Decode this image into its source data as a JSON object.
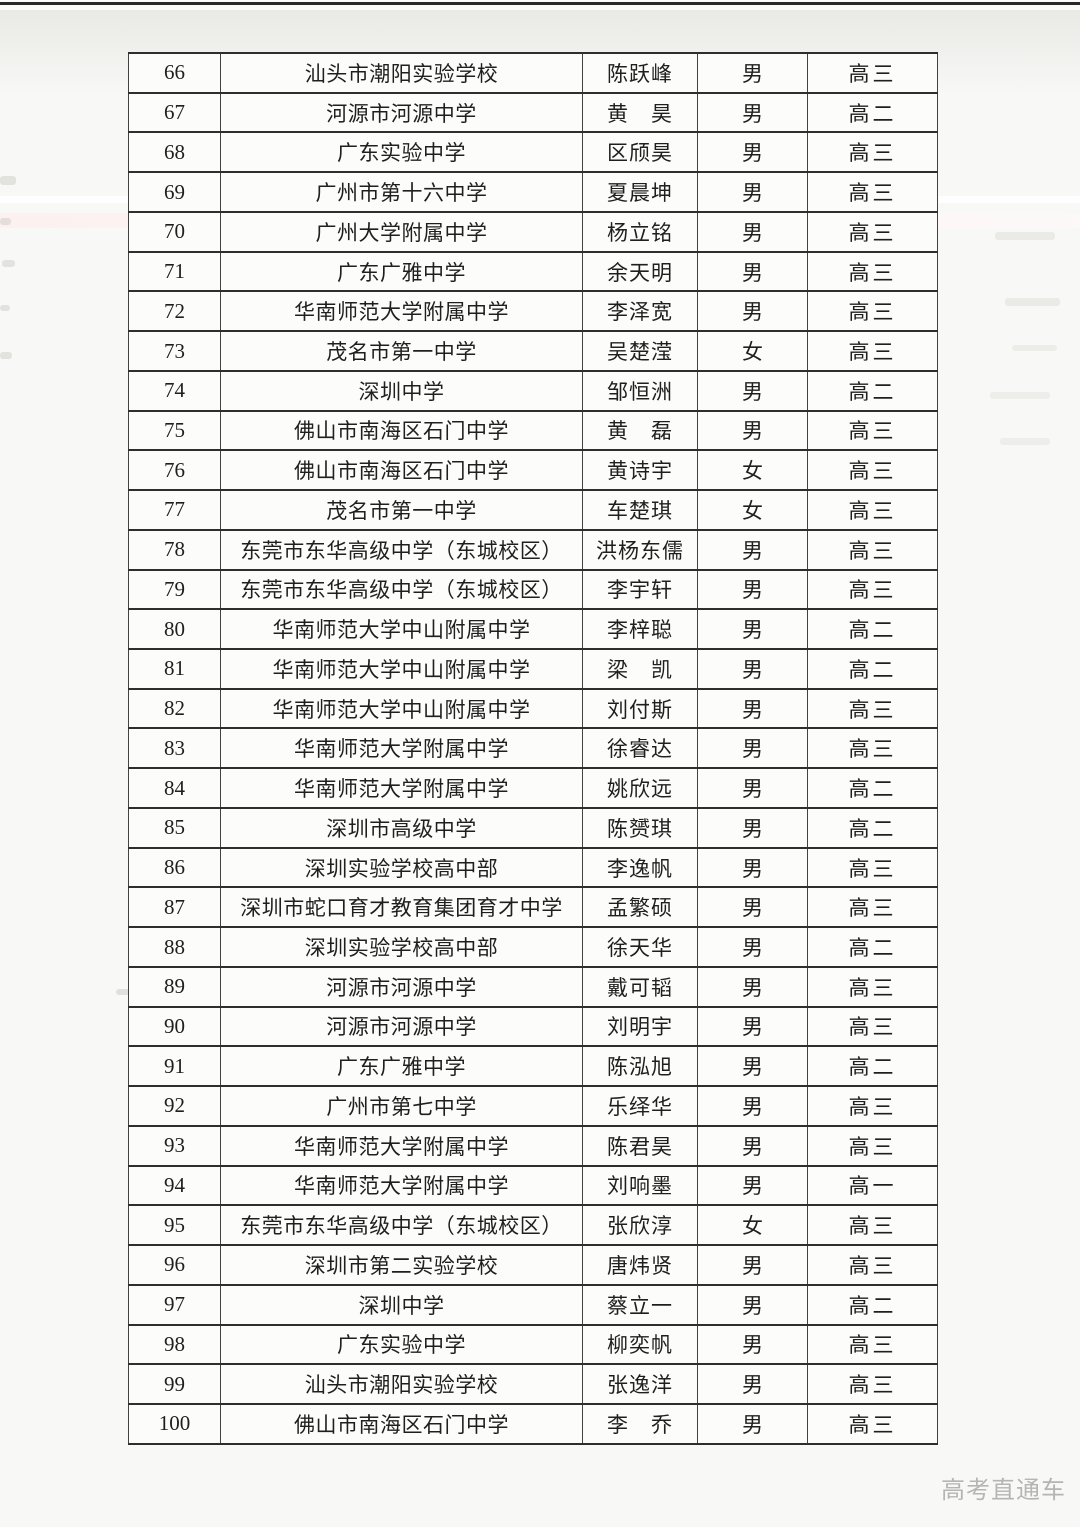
{
  "page": {
    "watermark": {
      "text": "高考直通车",
      "color": "#b5b5b2"
    }
  },
  "table": {
    "rows": [
      {
        "no": "66",
        "school": "汕头市潮阳实验学校",
        "name": "陈跃峰",
        "gender": "男",
        "grade": "高三"
      },
      {
        "no": "67",
        "school": "河源市河源中学",
        "name": "黄　昊",
        "gender": "男",
        "grade": "高二"
      },
      {
        "no": "68",
        "school": "广东实验中学",
        "name": "区颀昊",
        "gender": "男",
        "grade": "高三"
      },
      {
        "no": "69",
        "school": "广州市第十六中学",
        "name": "夏晨坤",
        "gender": "男",
        "grade": "高三"
      },
      {
        "no": "70",
        "school": "广州大学附属中学",
        "name": "杨立铭",
        "gender": "男",
        "grade": "高三"
      },
      {
        "no": "71",
        "school": "广东广雅中学",
        "name": "余天明",
        "gender": "男",
        "grade": "高三"
      },
      {
        "no": "72",
        "school": "华南师范大学附属中学",
        "name": "李泽宽",
        "gender": "男",
        "grade": "高三"
      },
      {
        "no": "73",
        "school": "茂名市第一中学",
        "name": "吴楚滢",
        "gender": "女",
        "grade": "高三"
      },
      {
        "no": "74",
        "school": "深圳中学",
        "name": "邹恒洲",
        "gender": "男",
        "grade": "高二"
      },
      {
        "no": "75",
        "school": "佛山市南海区石门中学",
        "name": "黄　磊",
        "gender": "男",
        "grade": "高三"
      },
      {
        "no": "76",
        "school": "佛山市南海区石门中学",
        "name": "黄诗宇",
        "gender": "女",
        "grade": "高三"
      },
      {
        "no": "77",
        "school": "茂名市第一中学",
        "name": "车楚琪",
        "gender": "女",
        "grade": "高三"
      },
      {
        "no": "78",
        "school": "东莞市东华高级中学（东城校区）",
        "name": "洪杨东儒",
        "gender": "男",
        "grade": "高三"
      },
      {
        "no": "79",
        "school": "东莞市东华高级中学（东城校区）",
        "name": "李宇轩",
        "gender": "男",
        "grade": "高三"
      },
      {
        "no": "80",
        "school": "华南师范大学中山附属中学",
        "name": "李梓聪",
        "gender": "男",
        "grade": "高二"
      },
      {
        "no": "81",
        "school": "华南师范大学中山附属中学",
        "name": "梁　凯",
        "gender": "男",
        "grade": "高二"
      },
      {
        "no": "82",
        "school": "华南师范大学中山附属中学",
        "name": "刘付斯",
        "gender": "男",
        "grade": "高三"
      },
      {
        "no": "83",
        "school": "华南师范大学附属中学",
        "name": "徐睿达",
        "gender": "男",
        "grade": "高三"
      },
      {
        "no": "84",
        "school": "华南师范大学附属中学",
        "name": "姚欣远",
        "gender": "男",
        "grade": "高二"
      },
      {
        "no": "85",
        "school": "深圳市高级中学",
        "name": "陈赟琪",
        "gender": "男",
        "grade": "高二"
      },
      {
        "no": "86",
        "school": "深圳实验学校高中部",
        "name": "李逸帆",
        "gender": "男",
        "grade": "高三"
      },
      {
        "no": "87",
        "school": "深圳市蛇口育才教育集团育才中学",
        "name": "孟繁硕",
        "gender": "男",
        "grade": "高三"
      },
      {
        "no": "88",
        "school": "深圳实验学校高中部",
        "name": "徐天华",
        "gender": "男",
        "grade": "高二"
      },
      {
        "no": "89",
        "school": "河源市河源中学",
        "name": "戴可韬",
        "gender": "男",
        "grade": "高三"
      },
      {
        "no": "90",
        "school": "河源市河源中学",
        "name": "刘明宇",
        "gender": "男",
        "grade": "高三"
      },
      {
        "no": "91",
        "school": "广东广雅中学",
        "name": "陈泓旭",
        "gender": "男",
        "grade": "高二"
      },
      {
        "no": "92",
        "school": "广州市第七中学",
        "name": "乐绎华",
        "gender": "男",
        "grade": "高三"
      },
      {
        "no": "93",
        "school": "华南师范大学附属中学",
        "name": "陈君昊",
        "gender": "男",
        "grade": "高三"
      },
      {
        "no": "94",
        "school": "华南师范大学附属中学",
        "name": "刘响墨",
        "gender": "男",
        "grade": "高一"
      },
      {
        "no": "95",
        "school": "东莞市东华高级中学（东城校区）",
        "name": "张欣淳",
        "gender": "女",
        "grade": "高三"
      },
      {
        "no": "96",
        "school": "深圳市第二实验学校",
        "name": "唐炜贤",
        "gender": "男",
        "grade": "高三"
      },
      {
        "no": "97",
        "school": "深圳中学",
        "name": "蔡立一",
        "gender": "男",
        "grade": "高二"
      },
      {
        "no": "98",
        "school": "广东实验中学",
        "name": "柳奕帆",
        "gender": "男",
        "grade": "高三"
      },
      {
        "no": "99",
        "school": "汕头市潮阳实验学校",
        "name": "张逸洋",
        "gender": "男",
        "grade": "高三"
      },
      {
        "no": "100",
        "school": "佛山市南海区石门中学",
        "name": "李　乔",
        "gender": "男",
        "grade": "高三"
      }
    ]
  }
}
